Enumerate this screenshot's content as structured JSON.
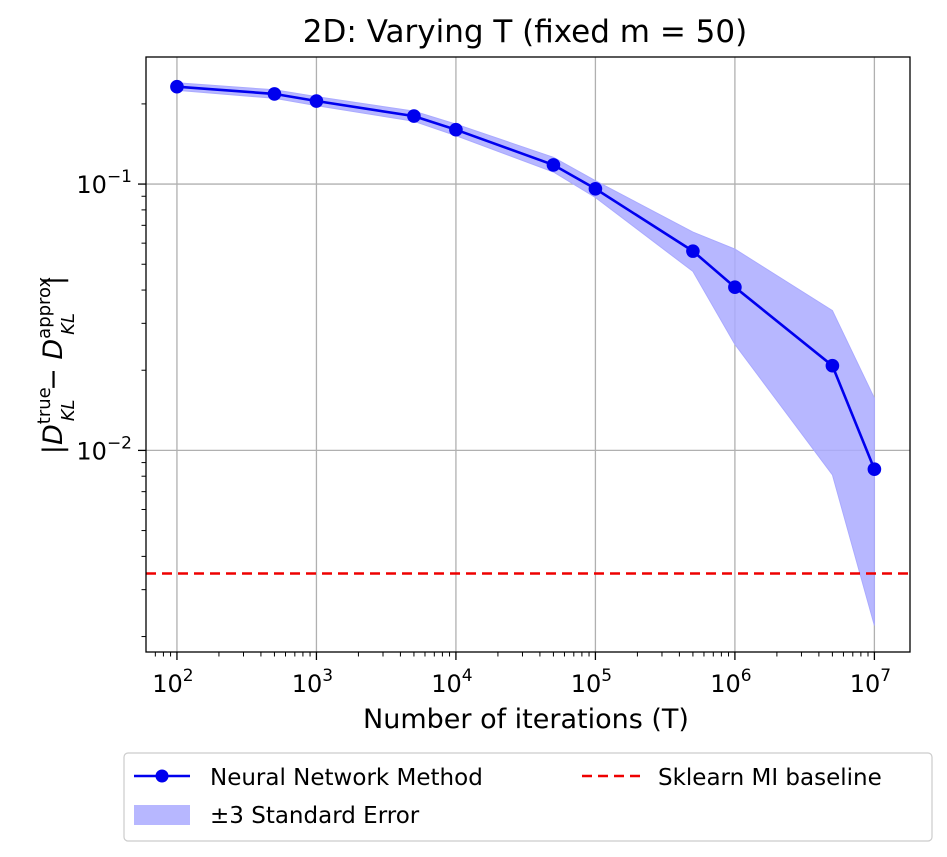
{
  "chart_data": {
    "type": "line",
    "title": "2D: Varying T (fixed m = 50)",
    "xlabel": "Number of iterations (T)",
    "ylabel": {
      "pipe": "|",
      "d": "D",
      "true_sup": "true",
      "kl_sub": "KL",
      "minus": " − ",
      "approx_sup": "approx"
    },
    "x_scale": "log",
    "y_scale": "log",
    "xlim": [
      60,
      18000000
    ],
    "ylim": [
      0.00175,
      0.3
    ],
    "grid": true,
    "x_ticks": [
      {
        "value": 100,
        "base": "10",
        "exp": "2"
      },
      {
        "value": 1000,
        "base": "10",
        "exp": "3"
      },
      {
        "value": 10000,
        "base": "10",
        "exp": "4"
      },
      {
        "value": 100000,
        "base": "10",
        "exp": "5"
      },
      {
        "value": 1000000,
        "base": "10",
        "exp": "6"
      },
      {
        "value": 10000000,
        "base": "10",
        "exp": "7"
      }
    ],
    "y_ticks": [
      {
        "value": 0.01,
        "base": "10",
        "exp": "−2"
      },
      {
        "value": 0.1,
        "base": "10",
        "exp": "−1"
      }
    ],
    "series": [
      {
        "name": "Neural Network Method",
        "color": "#0000ee",
        "x": [
          100,
          500,
          1000,
          5000,
          10000,
          50000,
          100000,
          500000,
          1000000,
          5000000,
          10000000
        ],
        "values": [
          0.232,
          0.218,
          0.205,
          0.18,
          0.16,
          0.118,
          0.096,
          0.056,
          0.041,
          0.0208,
          0.0085
        ],
        "lower": [
          0.225,
          0.21,
          0.197,
          0.172,
          0.152,
          0.111,
          0.089,
          0.047,
          0.025,
          0.0081,
          0.0022
        ],
        "upper": [
          0.24,
          0.226,
          0.213,
          0.188,
          0.168,
          0.126,
          0.103,
          0.066,
          0.057,
          0.0335,
          0.0157
        ]
      }
    ],
    "band": {
      "name": "±3 Standard Error",
      "color": "#aaaaff"
    },
    "baseline": {
      "name": "Sklearn MI baseline",
      "value": 0.00345,
      "color": "#ee0000"
    },
    "legend_position": "below"
  }
}
